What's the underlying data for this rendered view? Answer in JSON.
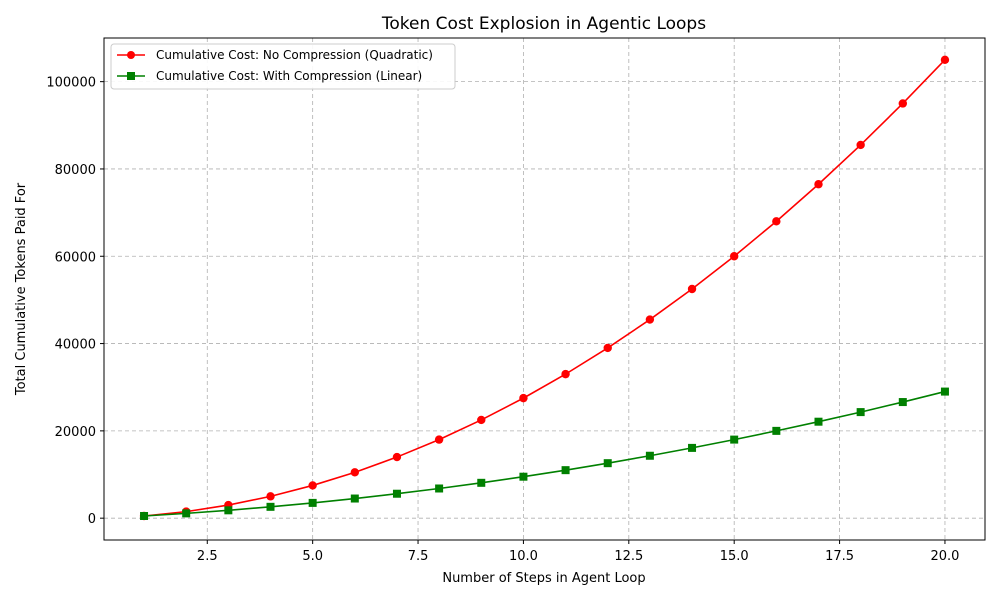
{
  "chart_data": {
    "type": "line",
    "title": "Token Cost Explosion in Agentic Loops",
    "xlabel": "Number of Steps in Agent Loop",
    "ylabel": "Total Cumulative Tokens Paid For",
    "xlim": [
      0.05,
      20.95
    ],
    "ylim": [
      -5000,
      110000
    ],
    "xticks": [
      2.5,
      5.0,
      7.5,
      10.0,
      12.5,
      15.0,
      17.5,
      20.0
    ],
    "xtick_labels": [
      "2.5",
      "5.0",
      "7.5",
      "10.0",
      "12.5",
      "15.0",
      "17.5",
      "20.0"
    ],
    "yticks": [
      0,
      20000,
      40000,
      60000,
      80000,
      100000
    ],
    "ytick_labels": [
      "0",
      "20000",
      "40000",
      "60000",
      "80000",
      "100000"
    ],
    "grid": true,
    "legend_position": "top-left",
    "x": [
      1,
      2,
      3,
      4,
      5,
      6,
      7,
      8,
      9,
      10,
      11,
      12,
      13,
      14,
      15,
      16,
      17,
      18,
      19,
      20
    ],
    "series": [
      {
        "name": "Cumulative Cost: No Compression (Quadratic)",
        "color": "#ff0000",
        "marker": "circle",
        "values": [
          500,
          1500,
          3000,
          5000,
          7500,
          10500,
          14000,
          18000,
          22500,
          27500,
          33000,
          39000,
          45500,
          52500,
          60000,
          68000,
          76500,
          85500,
          95000,
          105000
        ]
      },
      {
        "name": "Cumulative Cost: With Compression (Linear)",
        "color": "#008000",
        "marker": "square",
        "values": [
          500,
          1100,
          1800,
          2600,
          3500,
          4500,
          5600,
          6800,
          8100,
          9500,
          11000,
          12600,
          14300,
          16100,
          18000,
          20000,
          22100,
          24300,
          26600,
          29000
        ]
      }
    ]
  }
}
